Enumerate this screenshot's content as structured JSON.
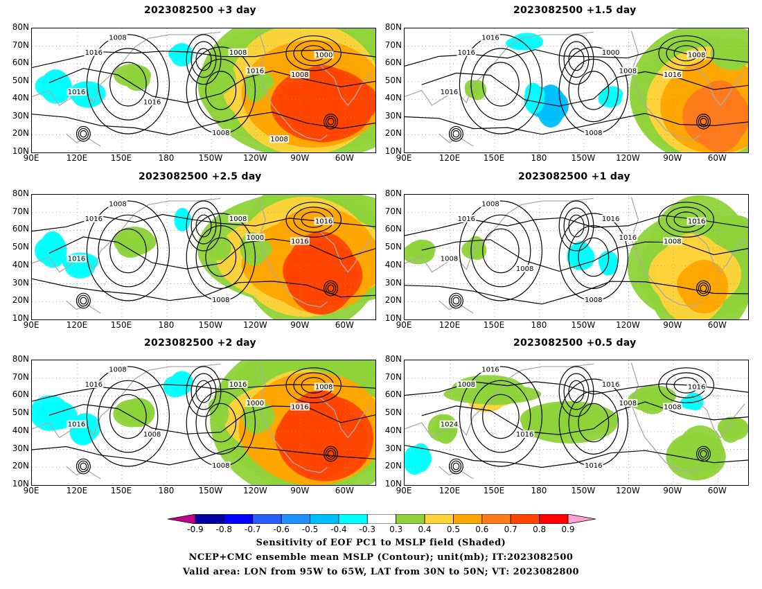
{
  "panels": [
    {
      "title": "2023082500  +3 day",
      "colorPreset": 0
    },
    {
      "title": "2023082500  +1.5 day",
      "colorPreset": 1
    },
    {
      "title": "2023082500  +2.5 day",
      "colorPreset": 0
    },
    {
      "title": "2023082500  +1 day",
      "colorPreset": 2
    },
    {
      "title": "2023082500  +2 day",
      "colorPreset": 0
    },
    {
      "title": "2023082500  +0.5 day",
      "colorPreset": 3
    }
  ],
  "lat_ticks": [
    "80N",
    "70N",
    "60N",
    "50N",
    "40N",
    "30N",
    "20N",
    "10N"
  ],
  "lon_ticks": [
    "90E",
    "120E",
    "150E",
    "180",
    "150W",
    "120W",
    "90W",
    "60W"
  ],
  "contour_labels": {
    "p1": [
      "1008",
      "1016",
      "1008",
      "1016",
      "1000",
      "1008",
      "1016",
      "1008",
      "1016",
      "1008"
    ],
    "p2": [
      "1016",
      "1016",
      "1000",
      "1008",
      "1008",
      "1016",
      "1016",
      "1008"
    ],
    "p3": [
      "1008",
      "1016",
      "1008",
      "1000",
      "1016",
      "1016",
      "1016",
      "1008"
    ],
    "p4": [
      "1008",
      "1016",
      "1016",
      "1016",
      "1016",
      "1008",
      "1008",
      "1008",
      "1008"
    ],
    "p5": [
      "1008",
      "1016",
      "1016",
      "1000",
      "1008",
      "1016",
      "1016",
      "1008",
      "1008"
    ],
    "p6": [
      "1016",
      "1008",
      "1016",
      "1008",
      "1016",
      "1008",
      "1024",
      "1016",
      "1016"
    ]
  },
  "colorbar": {
    "labels": [
      "-0.9",
      "-0.8",
      "-0.7",
      "-0.6",
      "-0.5",
      "-0.4",
      "-0.3",
      "0.3",
      "0.4",
      "0.5",
      "0.6",
      "0.7",
      "0.8",
      "0.9"
    ],
    "colors": [
      "#0000a0",
      "#0000ff",
      "#2a5cff",
      "#1e90ff",
      "#00bfff",
      "#00ffff",
      "#ffffff",
      "#8fd33a",
      "#ffd33a",
      "#ffa500",
      "#ff7a1a",
      "#ff4500",
      "#ff0000"
    ],
    "left_arrow_color": "#c0008c",
    "right_arrow_color": "#ffa0d0"
  },
  "caption": {
    "line1": "Sensitivity of EOF PC1 to MSLP field (Shaded)",
    "line2": "NCEP+CMC ensemble mean MSLP (Contour); unit(mb); IT:2023082500",
    "line3": "Valid area: LON from 95W to 65W, LAT from 30N to 50N; VT: 2023082800"
  }
}
